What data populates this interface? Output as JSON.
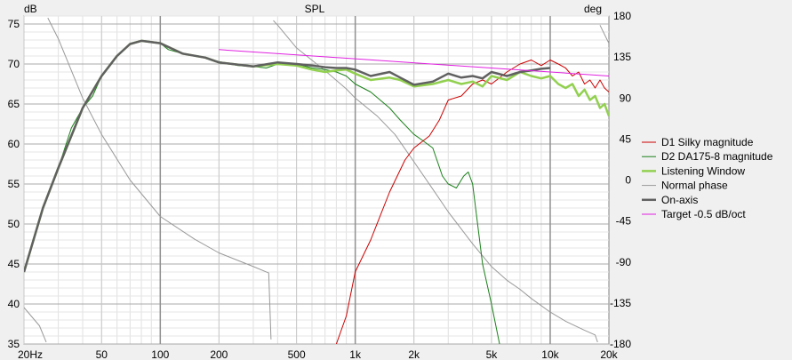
{
  "chart_data": {
    "type": "line",
    "title": "SPL",
    "ylabel": "dB",
    "y2label": "deg",
    "xscale": "log",
    "xlim": [
      20,
      20000
    ],
    "ylim": [
      35,
      76
    ],
    "y2lim": [
      -180,
      180
    ],
    "x_ticks": [
      {
        "value": 20,
        "label": "20Hz"
      },
      {
        "value": 50,
        "label": "50"
      },
      {
        "value": 100,
        "label": "100"
      },
      {
        "value": 200,
        "label": "200"
      },
      {
        "value": 500,
        "label": "500"
      },
      {
        "value": 1000,
        "label": "1k"
      },
      {
        "value": 2000,
        "label": "2k"
      },
      {
        "value": 5000,
        "label": "5k"
      },
      {
        "value": 10000,
        "label": "10k"
      },
      {
        "value": 20000,
        "label": "20k"
      }
    ],
    "y_ticks": [
      {
        "value": 75,
        "label": "75"
      },
      {
        "value": 70,
        "label": "70"
      },
      {
        "value": 65,
        "label": "65"
      },
      {
        "value": 60,
        "label": "60"
      },
      {
        "value": 55,
        "label": "55"
      },
      {
        "value": 50,
        "label": "50"
      },
      {
        "value": 45,
        "label": "45"
      },
      {
        "value": 40,
        "label": "40"
      },
      {
        "value": 35,
        "label": "35"
      }
    ],
    "y2_ticks": [
      {
        "value": 180,
        "label": "180"
      },
      {
        "value": 135,
        "label": "135"
      },
      {
        "value": 90,
        "label": "90"
      },
      {
        "value": 45,
        "label": "45"
      },
      {
        "value": 0,
        "label": "0"
      },
      {
        "value": -45,
        "label": "-45"
      },
      {
        "value": -90,
        "label": "-90"
      },
      {
        "value": -135,
        "label": "-135"
      },
      {
        "value": -180,
        "label": "-180"
      }
    ],
    "grid": true,
    "legend_position": "right",
    "series": [
      {
        "name": "D1 Silky magnitude",
        "color": "#cc0000",
        "axis": "left",
        "width": 1,
        "points": [
          [
            800,
            35
          ],
          [
            900,
            38.5
          ],
          [
            1000,
            44
          ],
          [
            1200,
            48
          ],
          [
            1500,
            54
          ],
          [
            1800,
            58
          ],
          [
            2000,
            59.5
          ],
          [
            2400,
            61
          ],
          [
            2700,
            63
          ],
          [
            3000,
            65.5
          ],
          [
            3500,
            66
          ],
          [
            4000,
            67.5
          ],
          [
            4500,
            68
          ],
          [
            5000,
            67.5
          ],
          [
            6000,
            69
          ],
          [
            7000,
            70
          ],
          [
            8000,
            70.5
          ],
          [
            9000,
            69.8
          ],
          [
            10000,
            70.5
          ],
          [
            11000,
            70
          ],
          [
            12000,
            69.5
          ],
          [
            13000,
            68.5
          ],
          [
            14000,
            69
          ],
          [
            15000,
            67.5
          ],
          [
            16000,
            68
          ],
          [
            17000,
            67
          ],
          [
            18000,
            68
          ],
          [
            19000,
            67
          ],
          [
            20000,
            66.5
          ]
        ]
      },
      {
        "name": "D2 DA175-8 magnitude",
        "color": "#1a7f1a",
        "axis": "left",
        "width": 1,
        "points": [
          [
            20,
            44
          ],
          [
            22,
            47.5
          ],
          [
            25,
            52
          ],
          [
            30,
            57
          ],
          [
            35,
            62
          ],
          [
            40,
            64.5
          ],
          [
            45,
            66
          ],
          [
            50,
            68.5
          ],
          [
            60,
            71
          ],
          [
            70,
            72.5
          ],
          [
            80,
            72.9
          ],
          [
            90,
            72.8
          ],
          [
            100,
            72.6
          ],
          [
            110,
            71.8
          ],
          [
            130,
            71.3
          ],
          [
            150,
            71
          ],
          [
            170,
            70.8
          ],
          [
            200,
            70.3
          ],
          [
            250,
            69.8
          ],
          [
            300,
            69.7
          ],
          [
            350,
            69.5
          ],
          [
            400,
            70
          ],
          [
            500,
            70
          ],
          [
            600,
            69.5
          ],
          [
            700,
            69.3
          ],
          [
            800,
            69
          ],
          [
            900,
            68.5
          ],
          [
            1000,
            67.5
          ],
          [
            1200,
            66.5
          ],
          [
            1500,
            64.5
          ],
          [
            1700,
            63
          ],
          [
            2000,
            61.2
          ],
          [
            2200,
            60.5
          ],
          [
            2500,
            59.5
          ],
          [
            2800,
            56
          ],
          [
            3000,
            55
          ],
          [
            3300,
            54.5
          ],
          [
            3600,
            56
          ],
          [
            3800,
            56.5
          ],
          [
            4000,
            55
          ],
          [
            4500,
            45
          ],
          [
            5000,
            40
          ],
          [
            5500,
            35
          ]
        ]
      },
      {
        "name": "Listening Window",
        "color": "#92d050",
        "axis": "left",
        "width": 2.5,
        "points": [
          [
            20,
            44
          ],
          [
            25,
            52
          ],
          [
            30,
            57
          ],
          [
            40,
            64.5
          ],
          [
            50,
            68.5
          ],
          [
            60,
            71
          ],
          [
            70,
            72.5
          ],
          [
            80,
            72.9
          ],
          [
            100,
            72.6
          ],
          [
            130,
            71.3
          ],
          [
            170,
            70.8
          ],
          [
            200,
            70.2
          ],
          [
            300,
            69.7
          ],
          [
            400,
            70
          ],
          [
            500,
            69.8
          ],
          [
            600,
            69.3
          ],
          [
            700,
            69
          ],
          [
            800,
            69.2
          ],
          [
            900,
            69.3
          ],
          [
            1000,
            68.8
          ],
          [
            1200,
            68
          ],
          [
            1500,
            68.3
          ],
          [
            1700,
            68
          ],
          [
            2000,
            67.2
          ],
          [
            2500,
            67.5
          ],
          [
            3000,
            68
          ],
          [
            3500,
            67.5
          ],
          [
            4000,
            67.8
          ],
          [
            4500,
            67.2
          ],
          [
            5000,
            68.5
          ],
          [
            6000,
            68
          ],
          [
            7000,
            69
          ],
          [
            8000,
            68.5
          ],
          [
            9000,
            68.2
          ],
          [
            10000,
            68.5
          ],
          [
            11000,
            67.5
          ],
          [
            12000,
            67
          ],
          [
            13000,
            67.5
          ],
          [
            14000,
            66
          ],
          [
            15000,
            66.8
          ],
          [
            16000,
            65.5
          ],
          [
            17000,
            66
          ],
          [
            18000,
            64.5
          ],
          [
            19000,
            65
          ],
          [
            20000,
            63.5
          ]
        ]
      },
      {
        "name": "Normal phase",
        "color": "#999999",
        "axis": "right",
        "width": 1,
        "points": [
          [
            20,
            -140
          ],
          [
            24,
            -160
          ],
          [
            26,
            -178
          ],
          [
            26.5,
            178
          ],
          [
            30,
            155
          ],
          [
            40,
            90
          ],
          [
            50,
            50
          ],
          [
            70,
            0
          ],
          [
            100,
            -40
          ],
          [
            150,
            -65
          ],
          [
            200,
            -80
          ],
          [
            300,
            -95
          ],
          [
            360,
            -102
          ],
          [
            370,
            -175
          ],
          [
            380,
            175
          ],
          [
            400,
            170
          ],
          [
            500,
            145
          ],
          [
            700,
            120
          ],
          [
            900,
            100
          ],
          [
            1000,
            90
          ],
          [
            1300,
            70
          ],
          [
            1600,
            50
          ],
          [
            2000,
            20
          ],
          [
            2500,
            -10
          ],
          [
            3000,
            -35
          ],
          [
            4000,
            -70
          ],
          [
            5000,
            -95
          ],
          [
            6000,
            -110
          ],
          [
            7000,
            -120
          ],
          [
            8000,
            -130
          ],
          [
            10000,
            -145
          ],
          [
            12000,
            -155
          ],
          [
            15000,
            -165
          ],
          [
            17000,
            -170
          ],
          [
            17500,
            -178
          ],
          [
            18000,
            170
          ],
          [
            20000,
            150
          ]
        ]
      },
      {
        "name": "On-axis",
        "color": "#606060",
        "axis": "left",
        "width": 2.5,
        "points": [
          [
            20,
            44
          ],
          [
            25,
            52
          ],
          [
            30,
            57
          ],
          [
            40,
            64.5
          ],
          [
            50,
            68.5
          ],
          [
            60,
            71
          ],
          [
            70,
            72.5
          ],
          [
            80,
            72.9
          ],
          [
            100,
            72.6
          ],
          [
            130,
            71.3
          ],
          [
            170,
            70.8
          ],
          [
            200,
            70.2
          ],
          [
            300,
            69.7
          ],
          [
            400,
            70.2
          ],
          [
            500,
            70
          ],
          [
            600,
            69.8
          ],
          [
            700,
            69.6
          ],
          [
            800,
            69.5
          ],
          [
            900,
            69.5
          ],
          [
            1000,
            69.3
          ],
          [
            1200,
            68.5
          ],
          [
            1500,
            69
          ],
          [
            1700,
            68.3
          ],
          [
            2000,
            67.4
          ],
          [
            2500,
            67.8
          ],
          [
            3000,
            68.8
          ],
          [
            3500,
            68.3
          ],
          [
            4000,
            68.5
          ],
          [
            4500,
            68.2
          ],
          [
            5000,
            69
          ],
          [
            6000,
            68.5
          ],
          [
            7000,
            69
          ],
          [
            8000,
            69.2
          ],
          [
            9000,
            69.4
          ],
          [
            10000,
            69.5
          ]
        ]
      },
      {
        "name": "Target -0.5 dB/oct",
        "color": "#e020e0",
        "axis": "left",
        "width": 1,
        "points": [
          [
            200,
            71.8
          ],
          [
            20000,
            68.5
          ]
        ]
      }
    ]
  }
}
